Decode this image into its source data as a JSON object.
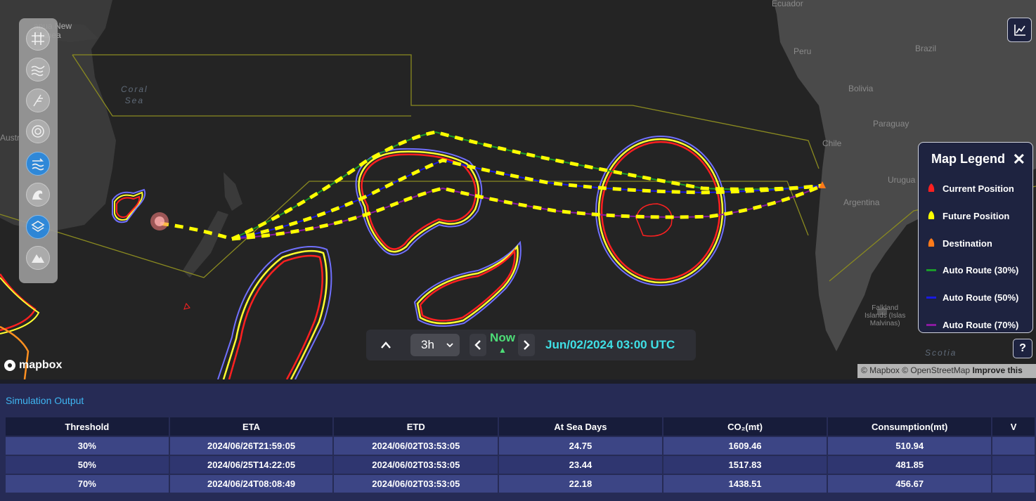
{
  "map": {
    "places": {
      "ecuador": "Ecuador",
      "papua": "apua New\nGuinea",
      "peru": "Peru",
      "brazil": "Brazil",
      "bolivia": "Bolivia",
      "paraguay": "Paraguay",
      "chile": "Chile",
      "uruguay": "Urugua",
      "argentina": "Argentina",
      "australia": "Austr",
      "falkland": "Falkland\nIslands (Islas\nMalvinas)"
    },
    "seas": {
      "coral": "Coral\nSea",
      "scotia": "Scotia"
    },
    "attribution": {
      "text": "© Mapbox © OpenStreetMap",
      "improve": "Improve this"
    },
    "logo": "mapbox"
  },
  "toolbar": {
    "tools": [
      {
        "name": "grid-tool",
        "icon": "grid-icon",
        "active": false
      },
      {
        "name": "wave-tool",
        "icon": "wave-icon",
        "active": false
      },
      {
        "name": "wind-tool",
        "icon": "wind-barb-icon",
        "active": false
      },
      {
        "name": "cyclone-tool",
        "icon": "cyclone-icon",
        "active": false
      },
      {
        "name": "current-tool",
        "icon": "current-icon",
        "active": true
      },
      {
        "name": "swell-tool",
        "icon": "swell-icon",
        "active": false
      },
      {
        "name": "layers-tool",
        "icon": "layers-icon",
        "active": true
      },
      {
        "name": "ice-tool",
        "icon": "mountain-icon",
        "active": false
      }
    ]
  },
  "legend": {
    "title": "Map Legend",
    "close": "✕",
    "items": [
      {
        "label": "Current Position",
        "kind": "marker",
        "color": "#ff2020"
      },
      {
        "label": "Future Position",
        "kind": "marker",
        "color": "#ffff00"
      },
      {
        "label": "Destination",
        "kind": "marker",
        "color": "#ff7a1a"
      },
      {
        "label": "Auto Route (30%)",
        "kind": "line",
        "color": "#1a9a2a"
      },
      {
        "label": "Auto Route (50%)",
        "kind": "line",
        "color": "#1a1ae0"
      },
      {
        "label": "Auto Route (70%)",
        "kind": "line",
        "color": "#8a1aa0"
      }
    ]
  },
  "timebar": {
    "step": "3h",
    "now": "Now",
    "time": "Jun/02/2024 03:00 UTC"
  },
  "help": "?",
  "simulation": {
    "title": "Simulation Output",
    "columns": [
      "Threshold",
      "ETA",
      "ETD",
      "At Sea Days",
      "CO₂(mt)",
      "Consumption(mt)",
      "V"
    ],
    "rows": [
      [
        "30%",
        "2024/06/26T21:59:05",
        "2024/06/02T03:53:05",
        "24.75",
        "1609.46",
        "510.94",
        ""
      ],
      [
        "50%",
        "2024/06/25T14:22:05",
        "2024/06/02T03:53:05",
        "23.44",
        "1517.83",
        "481.85",
        ""
      ],
      [
        "70%",
        "2024/06/24T08:08:49",
        "2024/06/02T03:53:05",
        "22.18",
        "1438.51",
        "456.67",
        ""
      ]
    ]
  }
}
